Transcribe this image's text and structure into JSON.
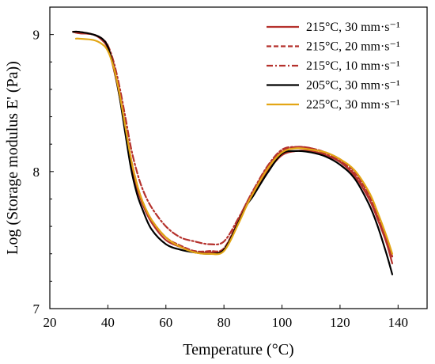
{
  "chart_data": {
    "type": "line",
    "xlabel": "Temperature (°C)",
    "ylabel": "Log (Storage modulus E' (Pa))",
    "xlim": [
      20,
      150
    ],
    "ylim": [
      7,
      9.2
    ],
    "xticks": [
      20,
      40,
      60,
      80,
      100,
      120,
      140
    ],
    "yticks": [
      7,
      8,
      9
    ],
    "xtick_labels": [
      "20",
      "40",
      "60",
      "80",
      "100",
      "120",
      "140"
    ],
    "ytick_labels": [
      "7",
      "8",
      "9"
    ],
    "grid": false,
    "legend_position": "top-right",
    "series": [
      {
        "name": "215°C, 30 mm·s⁻¹",
        "color": "#b5312c",
        "dash": "solid",
        "x": [
          28,
          30,
          35,
          38,
          40,
          42,
          44,
          46,
          48,
          50,
          52,
          55,
          60,
          65,
          70,
          75,
          80,
          85,
          88,
          90,
          95,
          100,
          105,
          110,
          115,
          120,
          125,
          130,
          133,
          136,
          138
        ],
        "y": [
          9.02,
          9.01,
          9.0,
          8.96,
          8.9,
          8.75,
          8.55,
          8.3,
          8.05,
          7.88,
          7.76,
          7.63,
          7.5,
          7.45,
          7.41,
          7.41,
          7.43,
          7.64,
          7.76,
          7.83,
          8.0,
          8.12,
          8.15,
          8.15,
          8.12,
          8.07,
          7.97,
          7.8,
          7.65,
          7.48,
          7.33
        ]
      },
      {
        "name": "215°C, 20 mm·s⁻¹",
        "color": "#b5312c",
        "dash": "dashed",
        "x": [
          28,
          30,
          35,
          38,
          40,
          42,
          44,
          46,
          48,
          50,
          52,
          55,
          60,
          65,
          70,
          75,
          80,
          85,
          88,
          90,
          95,
          100,
          105,
          110,
          115,
          120,
          125,
          130,
          133,
          136,
          138
        ],
        "y": [
          9.02,
          9.01,
          9.0,
          8.96,
          8.9,
          8.77,
          8.57,
          8.33,
          8.09,
          7.91,
          7.78,
          7.65,
          7.52,
          7.46,
          7.42,
          7.42,
          7.44,
          7.65,
          7.78,
          7.85,
          8.03,
          8.15,
          8.18,
          8.17,
          8.14,
          8.09,
          8.0,
          7.83,
          7.68,
          7.52,
          7.38
        ]
      },
      {
        "name": "215°C, 10 mm·s⁻¹",
        "color": "#b5312c",
        "dash": "dashdot",
        "x": [
          28,
          30,
          35,
          38,
          40,
          42,
          44,
          46,
          48,
          50,
          52,
          55,
          60,
          65,
          70,
          75,
          80,
          85,
          88,
          90,
          95,
          100,
          105,
          110,
          115,
          120,
          125,
          130,
          133,
          136,
          138
        ],
        "y": [
          9.02,
          9.02,
          9.0,
          8.97,
          8.92,
          8.8,
          8.62,
          8.4,
          8.17,
          8.0,
          7.87,
          7.74,
          7.6,
          7.52,
          7.49,
          7.47,
          7.49,
          7.66,
          7.78,
          7.86,
          8.04,
          8.16,
          8.18,
          8.17,
          8.13,
          8.08,
          7.98,
          7.81,
          7.66,
          7.5,
          7.38
        ]
      },
      {
        "name": "205°C, 30 mm·s⁻¹",
        "color": "#000000",
        "dash": "solid",
        "x": [
          28,
          30,
          35,
          38,
          40,
          42,
          44,
          46,
          48,
          50,
          52,
          55,
          60,
          65,
          70,
          75,
          80,
          85,
          88,
          90,
          95,
          100,
          105,
          110,
          115,
          120,
          125,
          130,
          133,
          136,
          138
        ],
        "y": [
          9.02,
          9.02,
          9.0,
          8.97,
          8.91,
          8.76,
          8.55,
          8.28,
          8.02,
          7.84,
          7.72,
          7.58,
          7.47,
          7.43,
          7.41,
          7.4,
          7.43,
          7.63,
          7.76,
          7.82,
          7.99,
          8.13,
          8.15,
          8.14,
          8.11,
          8.05,
          7.95,
          7.76,
          7.6,
          7.4,
          7.25
        ]
      },
      {
        "name": "225°C, 30 mm·s⁻¹",
        "color": "#e3a615",
        "dash": "solid",
        "x": [
          29,
          30,
          35,
          38,
          40,
          42,
          44,
          46,
          48,
          50,
          52,
          55,
          60,
          65,
          70,
          75,
          80,
          85,
          88,
          90,
          95,
          100,
          105,
          110,
          115,
          120,
          125,
          130,
          133,
          136,
          138
        ],
        "y": [
          8.97,
          8.97,
          8.96,
          8.93,
          8.88,
          8.76,
          8.57,
          8.33,
          8.09,
          7.91,
          7.78,
          7.65,
          7.52,
          7.45,
          7.41,
          7.4,
          7.42,
          7.62,
          7.76,
          7.84,
          8.02,
          8.14,
          8.17,
          8.16,
          8.14,
          8.09,
          8.01,
          7.85,
          7.7,
          7.53,
          7.4
        ]
      }
    ]
  }
}
